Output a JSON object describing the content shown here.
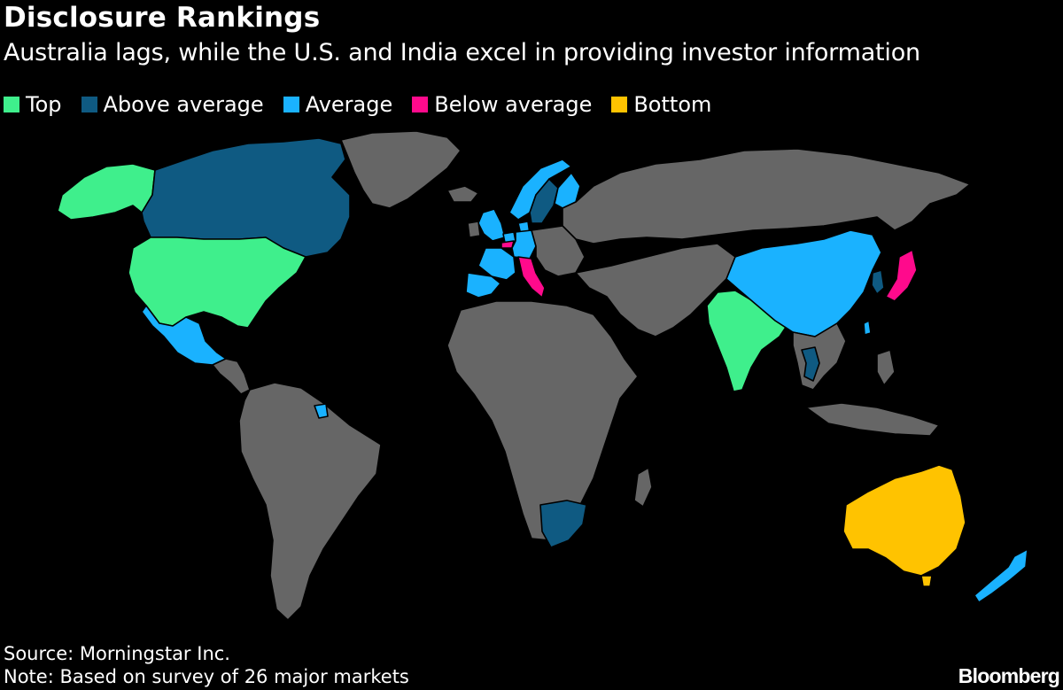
{
  "header": {
    "title": "Disclosure Rankings",
    "subtitle": "Australia lags, while the U.S. and India excel in providing investor information"
  },
  "legend": [
    {
      "label": "Top",
      "color": "#3fef8c"
    },
    {
      "label": "Above average",
      "color": "#0f5a82"
    },
    {
      "label": "Average",
      "color": "#1ab2ff"
    },
    {
      "label": "Below average",
      "color": "#ff0a8c"
    },
    {
      "label": "Bottom",
      "color": "#ffc300"
    }
  ],
  "colors": {
    "background": "#000000",
    "land_unrated": "#666666",
    "border": "#000000"
  },
  "map_data": {
    "Top": [
      "United States",
      "India",
      "Alaska (U.S.)"
    ],
    "Above average": [
      "Canada",
      "Sweden",
      "Thailand",
      "South Africa",
      "South Korea"
    ],
    "Average": [
      "France",
      "Spain",
      "United Kingdom",
      "Germany",
      "Netherlands",
      "Denmark",
      "Norway",
      "Finland",
      "China",
      "Mexico",
      "New Zealand",
      "Taiwan"
    ],
    "Below average": [
      "Italy",
      "Japan",
      "Belgium"
    ],
    "Bottom": [
      "Australia"
    ]
  },
  "footer": {
    "source": "Source: Morningstar Inc.",
    "note": "Note: Based on survey of 26 major markets",
    "brand": "Bloomberg"
  }
}
